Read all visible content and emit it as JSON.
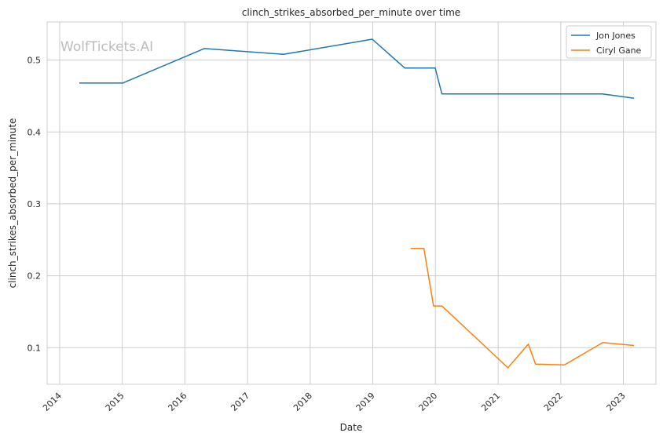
{
  "chart_data": {
    "type": "line",
    "title": "clinch_strikes_absorbed_per_minute over time",
    "xlabel": "Date",
    "ylabel": "clinch_strikes_absorbed_per_minute",
    "watermark": "WolfTickets.AI",
    "x_ticks": [
      "2014",
      "2015",
      "2016",
      "2017",
      "2018",
      "2019",
      "2020",
      "2021",
      "2022",
      "2023"
    ],
    "y_ticks": [
      "0.1",
      "0.2",
      "0.3",
      "0.4",
      "0.5"
    ],
    "xlim": [
      "2013-10-20",
      "2023-07-10"
    ],
    "ylim": [
      0.049,
      0.553
    ],
    "grid": true,
    "legend_position": "top-right",
    "series": [
      {
        "name": "Jon Jones",
        "color": "#1f77b4",
        "points": [
          {
            "x": "2014-04-26",
            "y": 0.468
          },
          {
            "x": "2015-01-03",
            "y": 0.468
          },
          {
            "x": "2016-04-23",
            "y": 0.516
          },
          {
            "x": "2017-07-29",
            "y": 0.508
          },
          {
            "x": "2018-12-29",
            "y": 0.529
          },
          {
            "x": "2019-07-06",
            "y": 0.489
          },
          {
            "x": "2019-12-31",
            "y": 0.489
          },
          {
            "x": "2020-02-08",
            "y": 0.453
          },
          {
            "x": "2022-09-01",
            "y": 0.453
          },
          {
            "x": "2023-03-04",
            "y": 0.447
          }
        ]
      },
      {
        "name": "Ciryl Gane",
        "color": "#ff7f0e",
        "points": [
          {
            "x": "2019-08-10",
            "y": 0.238
          },
          {
            "x": "2019-10-26",
            "y": 0.238
          },
          {
            "x": "2019-12-21",
            "y": 0.158
          },
          {
            "x": "2020-02-08",
            "y": 0.158
          },
          {
            "x": "2021-02-27",
            "y": 0.072
          },
          {
            "x": "2021-06-26",
            "y": 0.105
          },
          {
            "x": "2021-08-07",
            "y": 0.077
          },
          {
            "x": "2022-01-22",
            "y": 0.076
          },
          {
            "x": "2022-09-03",
            "y": 0.107
          },
          {
            "x": "2023-03-04",
            "y": 0.103
          }
        ]
      }
    ]
  }
}
